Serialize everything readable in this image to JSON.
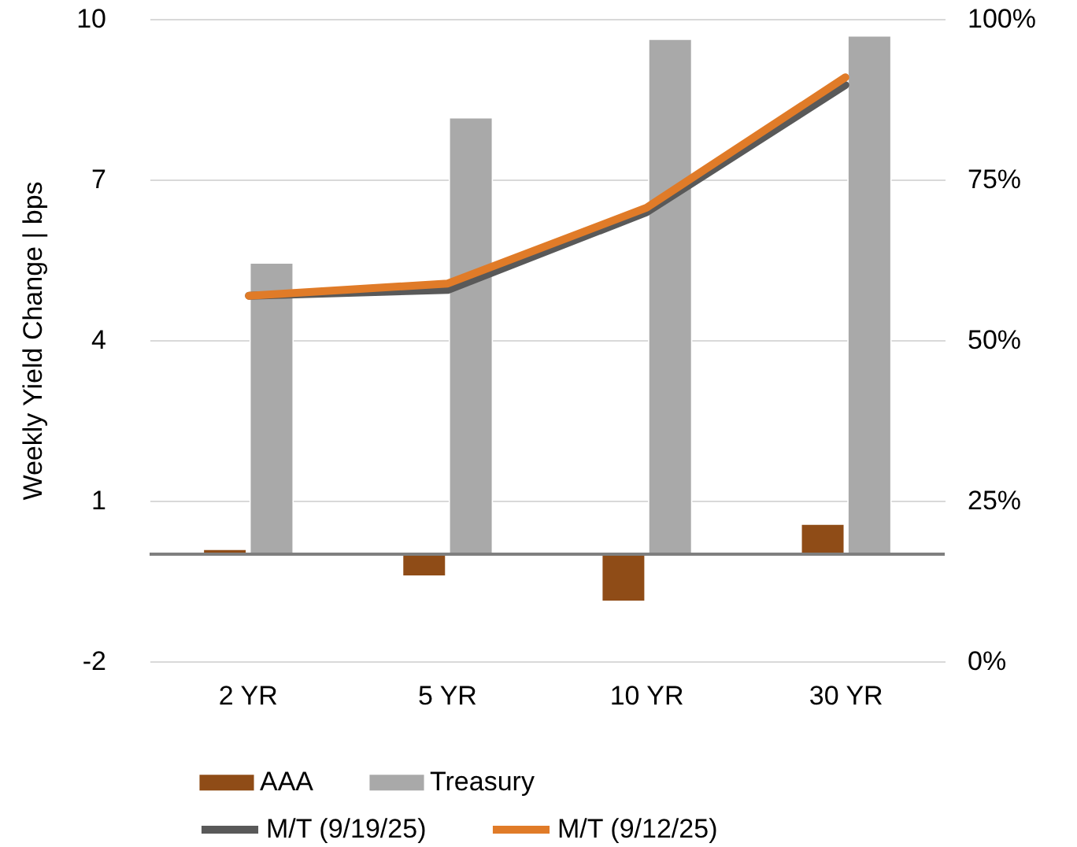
{
  "chart_data": {
    "type": "bar",
    "ylabel": "Weekly Yield Change | bps",
    "categories": [
      "2 YR",
      "5 YR",
      "10 YR",
      "30 YR"
    ],
    "series": [
      {
        "name": "AAA",
        "color": "#8f4c17",
        "values": [
          0.09,
          -0.41,
          -0.88,
          0.56
        ]
      },
      {
        "name": "Treasury",
        "color": "#a9a9a9",
        "values": [
          5.44,
          8.15,
          9.62,
          9.68
        ]
      },
      {
        "name": "M/T (9/19/25)",
        "type": "line",
        "axis": "y2",
        "color": "#595959",
        "values": [
          56.9,
          57.8,
          69.9,
          89.7
        ]
      },
      {
        "name": "M/T (9/12/25)",
        "type": "line",
        "axis": "y2",
        "color": "#e07b28",
        "values": [
          56.9,
          58.8,
          70.6,
          90.9
        ]
      }
    ],
    "ylim": [
      -2,
      10
    ],
    "yticks": [
      -2,
      1,
      4,
      7,
      10
    ],
    "y2lim": [
      0,
      100
    ],
    "y2ticks": [
      {
        "value": 0,
        "label": "0%"
      },
      {
        "value": 25,
        "label": "25%"
      },
      {
        "value": 50,
        "label": "50%"
      },
      {
        "value": 75,
        "label": "75%"
      },
      {
        "value": 100,
        "label": "100%"
      }
    ],
    "ref_lines": [
      {
        "axis": "y",
        "value": 0,
        "color": "#7f7f7f"
      }
    ],
    "grid": "y",
    "legend": "bottom"
  }
}
